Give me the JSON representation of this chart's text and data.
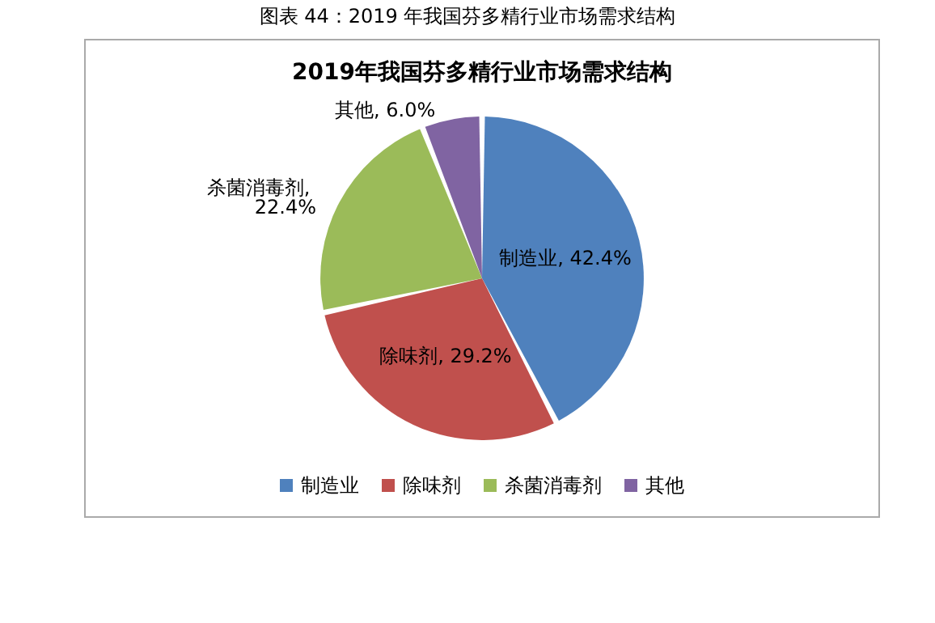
{
  "chart_data": {
    "type": "pie",
    "title": "2019年我国芬多精行业市场需求结构",
    "annotations": [
      "图表 44：2019 年我国芬多精行业市场需求结构"
    ],
    "categories": [
      "制造业",
      "除味剂",
      "杀菌消毒剂",
      "其他"
    ],
    "values": [
      42.4,
      29.2,
      22.4,
      6.0
    ],
    "value_labels": [
      "制造业, 42.4%",
      "除味剂, 29.2%",
      "杀菌消毒剂, 22.4%",
      "其他, 6.0%"
    ],
    "colors": [
      "#4f81bd",
      "#c0504d",
      "#9bbb59",
      "#8064a2"
    ],
    "legend": "bottom"
  }
}
